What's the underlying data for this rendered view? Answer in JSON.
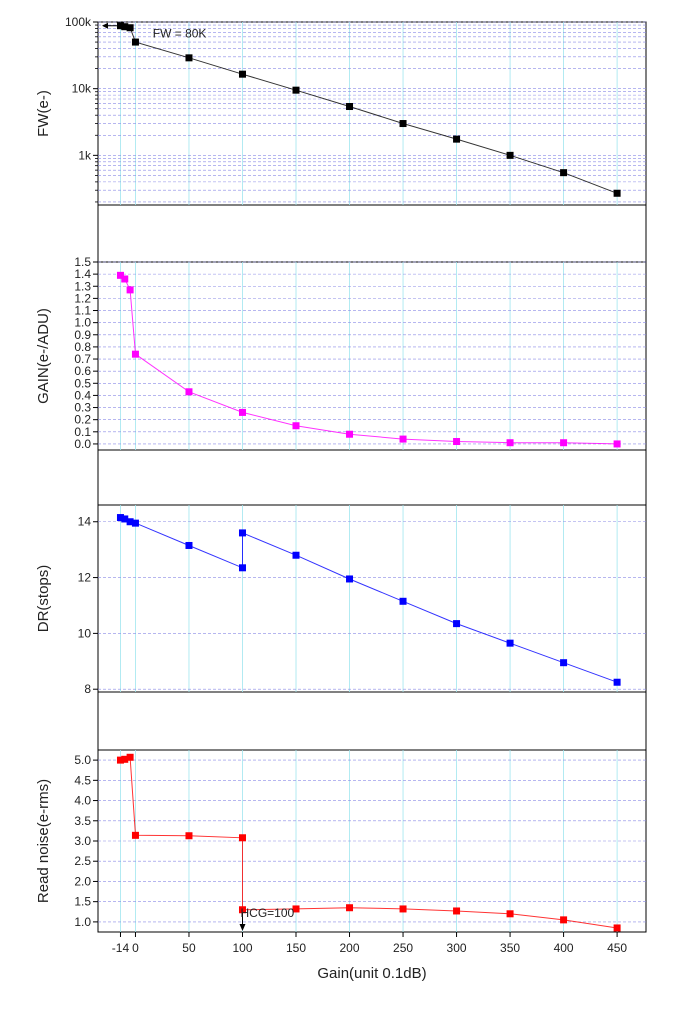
{
  "xlabel": "Gain(unit 0.1dB)",
  "x_ticks": [
    -14,
    0,
    50,
    100,
    150,
    200,
    250,
    300,
    350,
    400,
    450
  ],
  "x_tick_labels": [
    "-14",
    "0",
    "50",
    "100",
    "150",
    "200",
    "250",
    "300",
    "350",
    "400",
    "450"
  ],
  "xlim": [
    -35,
    477
  ],
  "grid": true,
  "chart_data": [
    {
      "type": "line",
      "ylabel": "FW(e-)",
      "yscale": "log",
      "ylim": [
        180,
        100000
      ],
      "y_ticks": [
        1000,
        10000,
        100000
      ],
      "y_tick_labels": [
        "1k",
        "10k",
        "100k"
      ],
      "color": "#000000",
      "series": [
        {
          "x": [
            -14,
            -10,
            -5,
            0,
            50,
            100,
            150,
            200,
            250,
            300,
            350,
            400,
            450
          ],
          "y": [
            88000,
            85000,
            82000,
            50000,
            29000,
            16500,
            9500,
            5400,
            3000,
            1750,
            1000,
            550,
            270
          ]
        }
      ],
      "annotations": [
        {
          "text": "FW = 80K",
          "x": -10,
          "y": 82000
        }
      ]
    },
    {
      "type": "line",
      "ylabel": "GAIN(e-/ADU)",
      "yscale": "linear",
      "ylim": [
        -0.05,
        1.5
      ],
      "y_ticks": [
        0.0,
        0.1,
        0.2,
        0.3,
        0.4,
        0.5,
        0.6,
        0.7,
        0.8,
        0.9,
        1.0,
        1.1,
        1.2,
        1.3,
        1.4,
        1.5
      ],
      "y_tick_labels": [
        "0.0",
        "0.1",
        "0.2",
        "0.3",
        "0.4",
        "0.5",
        "0.6",
        "0.7",
        "0.8",
        "0.9",
        "1.0",
        "1.1",
        "1.2",
        "1.3",
        "1.4",
        "1.5"
      ],
      "color": "#ff00ff",
      "series": [
        {
          "x": [
            -14,
            -10,
            -5,
            0,
            50,
            100,
            150,
            200,
            250,
            300,
            350,
            400,
            450
          ],
          "y": [
            1.39,
            1.36,
            1.27,
            0.74,
            0.43,
            0.26,
            0.15,
            0.08,
            0.04,
            0.02,
            0.01,
            0.01,
            0.0
          ]
        }
      ]
    },
    {
      "type": "line",
      "ylabel": "DR(stops)",
      "yscale": "linear",
      "ylim": [
        7.9,
        14.6
      ],
      "y_ticks": [
        8,
        10,
        12,
        14
      ],
      "y_tick_labels": [
        "8",
        "10",
        "12",
        "14"
      ],
      "color": "#0000ff",
      "series": [
        {
          "x": [
            -14,
            -10,
            -5,
            0,
            50,
            100,
            100,
            150,
            200,
            250,
            300,
            350,
            400,
            450
          ],
          "y": [
            14.15,
            14.1,
            14.0,
            13.95,
            13.15,
            12.35,
            13.6,
            12.8,
            11.95,
            11.15,
            10.35,
            9.65,
            8.95,
            8.25
          ]
        }
      ]
    },
    {
      "type": "line",
      "ylabel": "Read noise(e-rms)",
      "yscale": "linear",
      "ylim": [
        0.75,
        5.25
      ],
      "y_ticks": [
        1.0,
        1.5,
        2.0,
        2.5,
        3.0,
        3.5,
        4.0,
        4.5,
        5.0
      ],
      "y_tick_labels": [
        "1.0",
        "1.5",
        "2.0",
        "2.5",
        "3.0",
        "3.5",
        "4.0",
        "4.5",
        "5.0"
      ],
      "color": "#ff0000",
      "series": [
        {
          "x": [
            -14,
            -10,
            -5,
            0,
            50,
            100,
            100,
            150,
            200,
            250,
            300,
            350,
            400,
            450
          ],
          "y": [
            5.0,
            5.02,
            5.07,
            3.14,
            3.13,
            3.08,
            1.3,
            1.32,
            1.35,
            1.32,
            1.27,
            1.2,
            1.05,
            0.85
          ]
        }
      ],
      "annotations": [
        {
          "text": "HCG=100",
          "x": 100,
          "y": 1.02
        }
      ]
    }
  ]
}
